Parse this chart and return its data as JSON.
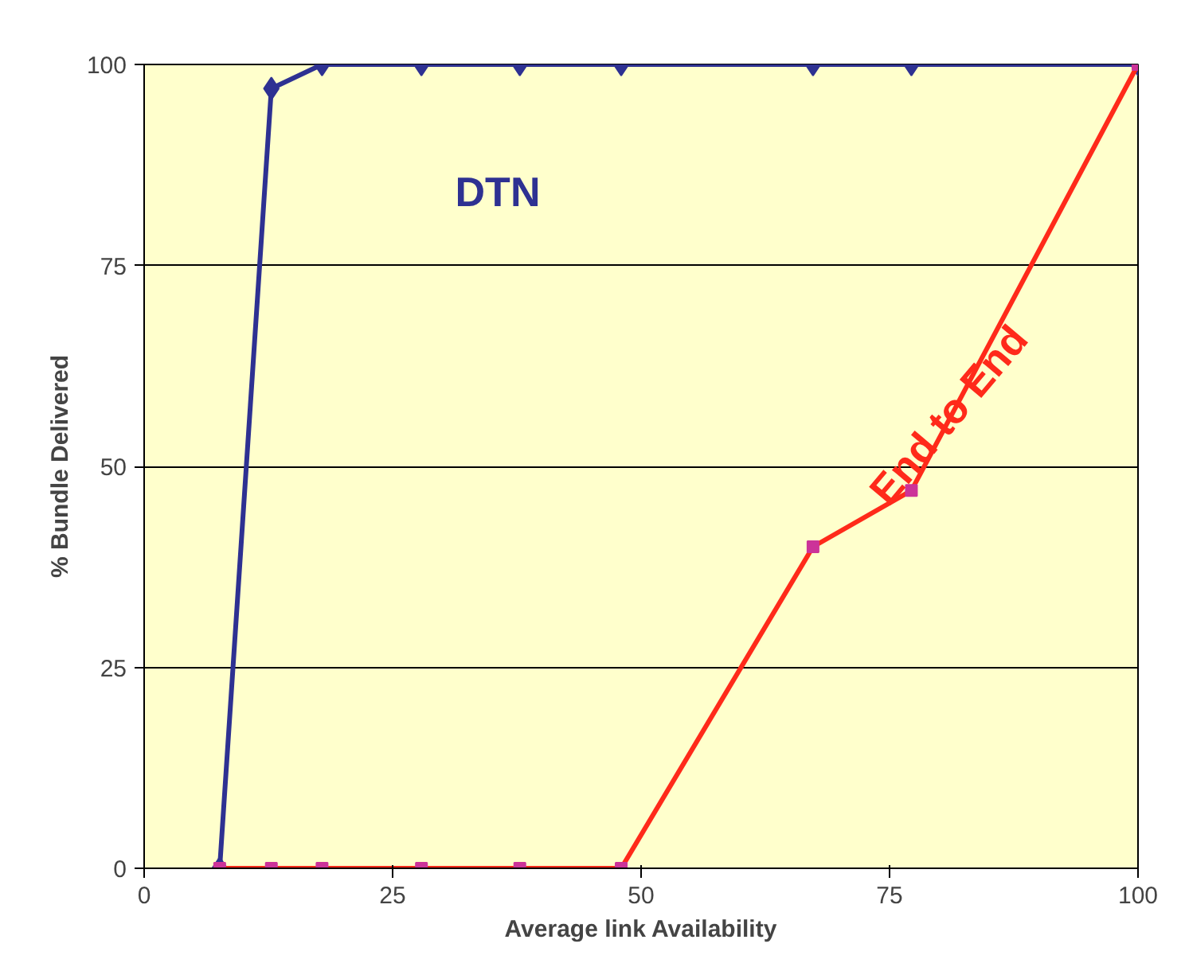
{
  "chart_data": {
    "type": "line",
    "xlabel": "Average link Availability",
    "ylabel": "% Bundle Delivered",
    "xlim": [
      0,
      100
    ],
    "xticks": [
      0,
      25,
      50,
      75,
      100
    ],
    "ylim": [
      0,
      100
    ],
    "yticks": [
      0,
      25,
      50,
      75,
      100
    ],
    "grid": "y",
    "legend": false,
    "series": [
      {
        "name": "DTN",
        "color": "#2e3192",
        "marker": "diamond",
        "x": [
          7.6,
          12.8,
          17.9,
          27.9,
          37.8,
          48,
          67.3,
          77.2,
          100
        ],
        "values": [
          0,
          97,
          100,
          100,
          100,
          100,
          100,
          100,
          100
        ]
      },
      {
        "name": "End to End",
        "color": "#ff2a1a",
        "marker": "square",
        "x": [
          7.6,
          12.8,
          17.9,
          27.9,
          37.8,
          48,
          67.3,
          77.2,
          100
        ],
        "values": [
          0,
          0,
          0,
          0,
          0,
          0,
          40,
          47,
          100
        ]
      }
    ]
  }
}
